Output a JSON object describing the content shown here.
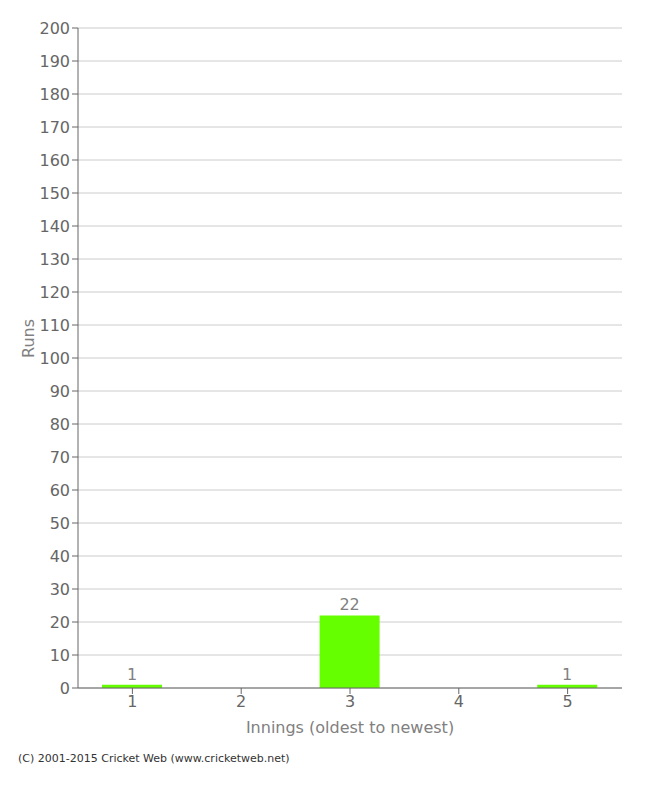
{
  "chart_data": {
    "type": "bar",
    "xlabel": "Innings (oldest to newest)",
    "ylabel": "Runs",
    "categories": [
      1,
      2,
      3,
      4,
      5
    ],
    "values": [
      1,
      0,
      22,
      0,
      1
    ],
    "color": "#66ff00",
    "ylim": [
      0,
      200
    ],
    "yticks": [
      0,
      10,
      20,
      30,
      40,
      50,
      60,
      70,
      80,
      90,
      100,
      110,
      120,
      130,
      140,
      150,
      160,
      170,
      180,
      190,
      200
    ],
    "grid": true,
    "data_labels": true,
    "annotations": [
      "(C) 2001-2015 Cricket Web (www.cricketweb.net)"
    ]
  }
}
